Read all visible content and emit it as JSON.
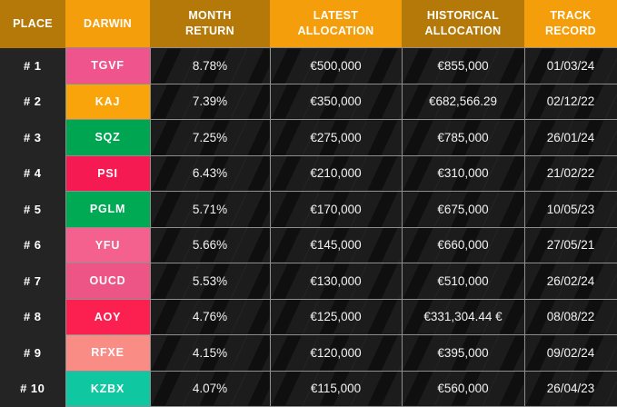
{
  "colors": {
    "header_dark": "#B5790A",
    "header_bright": "#F59E0B",
    "cell_border": "#8E8E8E",
    "place_column_bg": "#242424",
    "data_cell_bg": "#1C1C1C",
    "text": "#F2F2F2"
  },
  "chart_data": {
    "type": "table",
    "columns": [
      {
        "id": "place",
        "label": "PLACE",
        "variant": "dark"
      },
      {
        "id": "darwin",
        "label": "DARWIN",
        "variant": "bright"
      },
      {
        "id": "month-return",
        "label": "MONTH\nRETURN",
        "variant": "dark"
      },
      {
        "id": "latest-allocation",
        "label": "LATEST\nALLOCATION",
        "variant": "bright"
      },
      {
        "id": "historical-allocation",
        "label": "HISTORICAL\nALLOCATION",
        "variant": "dark"
      },
      {
        "id": "track-record",
        "label": "TRACK\nRECORD",
        "variant": "bright"
      }
    ],
    "rows": [
      {
        "place": "# 1",
        "darwin": "TGVF",
        "darwin_color": "#F0548C",
        "month_return": "8.78%",
        "latest_allocation": "€500,000",
        "historical_allocation": "€855,000",
        "track_record": "01/03/24"
      },
      {
        "place": "# 2",
        "darwin": "KAJ",
        "darwin_color": "#F9A40B",
        "month_return": "7.39%",
        "latest_allocation": "€350,000",
        "historical_allocation": "€682,566.29",
        "track_record": "02/12/22"
      },
      {
        "place": "# 3",
        "darwin": "SQZ",
        "darwin_color": "#00A551",
        "month_return": "7.25%",
        "latest_allocation": "€275,000",
        "historical_allocation": "€785,000",
        "track_record": "26/01/24"
      },
      {
        "place": "# 4",
        "darwin": "PSI",
        "darwin_color": "#F51A52",
        "month_return": "6.43%",
        "latest_allocation": "€210,000",
        "historical_allocation": "€310,000",
        "track_record": "21/02/22"
      },
      {
        "place": "# 5",
        "darwin": "PGLM",
        "darwin_color": "#00A954",
        "month_return": "5.71%",
        "latest_allocation": "€170,000",
        "historical_allocation": "€675,000",
        "track_record": "10/05/23"
      },
      {
        "place": "# 6",
        "darwin": "YFU",
        "darwin_color": "#F4618F",
        "month_return": "5.66%",
        "latest_allocation": "€145,000",
        "historical_allocation": "€660,000",
        "track_record": "27/05/21"
      },
      {
        "place": "# 7",
        "darwin": "OUCD",
        "darwin_color": "#EE5587",
        "month_return": "5.53%",
        "latest_allocation": "€130,000",
        "historical_allocation": "€510,000",
        "track_record": "26/02/24"
      },
      {
        "place": "# 8",
        "darwin": "AOY",
        "darwin_color": "#FB2050",
        "month_return": "4.76%",
        "latest_allocation": "€125,000",
        "historical_allocation": "€331,304.44 €",
        "track_record": "08/08/22"
      },
      {
        "place": "# 9",
        "darwin": "RFXE",
        "darwin_color": "#F98D85",
        "month_return": "4.15%",
        "latest_allocation": "€120,000",
        "historical_allocation": "€395,000",
        "track_record": "09/02/24"
      },
      {
        "place": "# 10",
        "darwin": "KZBX",
        "darwin_color": "#0FC7A1",
        "month_return": "4.07%",
        "latest_allocation": "€115,000",
        "historical_allocation": "€560,000",
        "track_record": "26/04/23"
      }
    ]
  }
}
